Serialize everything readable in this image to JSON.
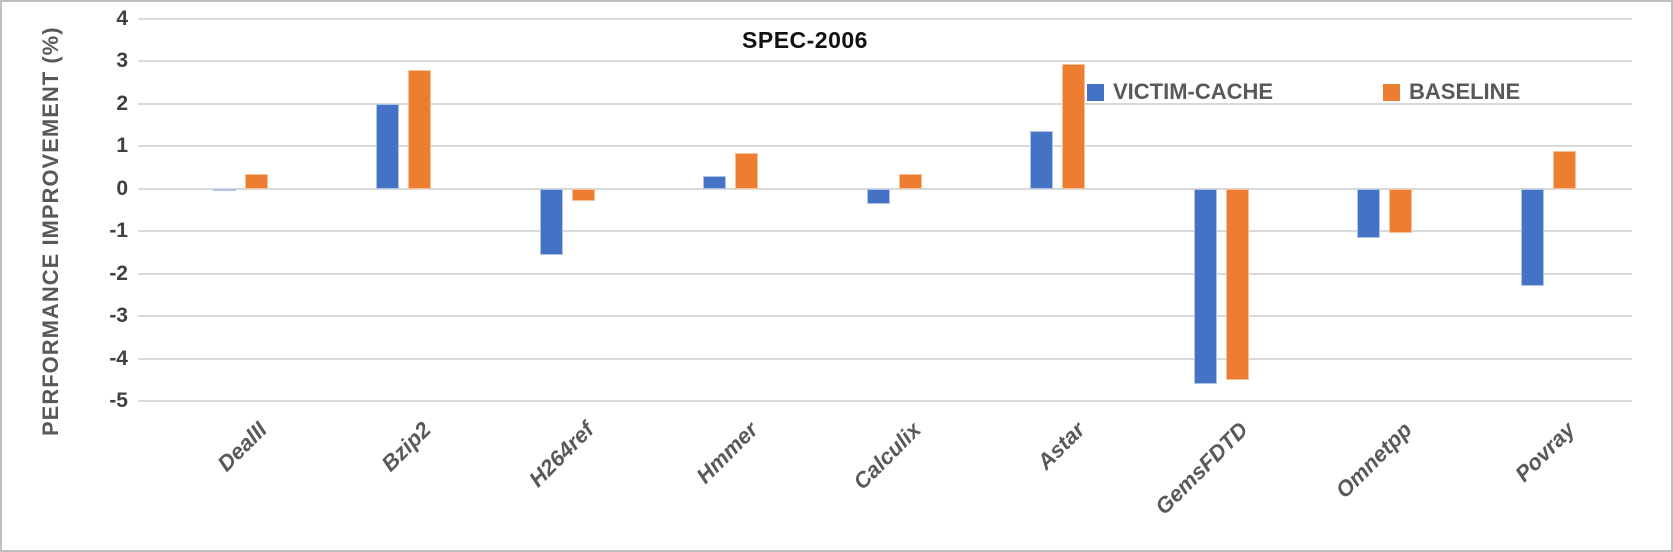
{
  "chart_data": {
    "type": "bar",
    "title": "SPEC-2006",
    "xlabel": "",
    "ylabel": "PERFORMANCE IMPROVEMENT (%)",
    "ylim": [
      -5,
      4
    ],
    "yticks": [
      4,
      3,
      2,
      1,
      0,
      -1,
      -2,
      -3,
      -4,
      -5
    ],
    "grid": true,
    "legend_position": "inside-top-right",
    "categories": [
      "DealII",
      "Bzip2",
      "H264ref",
      "Hmmer",
      "Calculix",
      "Astar",
      "GemsFDTD",
      "Omnetpp",
      "Povray"
    ],
    "series": [
      {
        "name": "VICTIM-CACHE",
        "color": "#4472C4",
        "border_color": "#AFC3E9",
        "values": [
          -0.05,
          2.0,
          -1.55,
          0.3,
          -0.35,
          1.35,
          -4.6,
          -1.15,
          -2.3
        ]
      },
      {
        "name": "BASELINE",
        "color": "#ED7D31",
        "border_color": "#F5C196",
        "values": [
          0.35,
          2.8,
          -0.3,
          0.85,
          0.35,
          2.95,
          -4.5,
          -1.05,
          0.9
        ]
      }
    ]
  },
  "colors": {
    "background": "#FFFFFF",
    "frame_border": "#BFBFBF",
    "gridline": "#D9D9D9",
    "tick_label": "#404040",
    "axis_title": "#595959",
    "category_label": "#595959",
    "legend_text": "#595959",
    "title": "#111111"
  }
}
